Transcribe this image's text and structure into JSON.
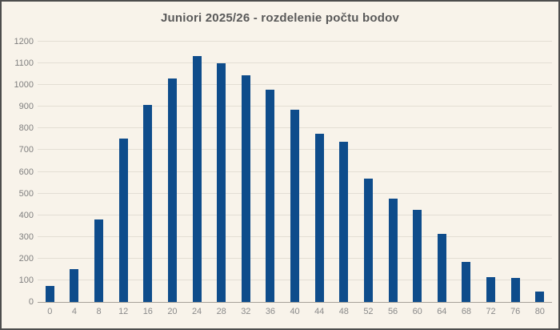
{
  "chart_data": {
    "type": "bar",
    "title": "Juniori 2025/26 - rozdelenie počtu bodov",
    "categories": [
      "0",
      "4",
      "8",
      "12",
      "16",
      "20",
      "24",
      "28",
      "32",
      "36",
      "40",
      "44",
      "48",
      "52",
      "56",
      "60",
      "64",
      "68",
      "72",
      "76",
      "80"
    ],
    "values": [
      75,
      150,
      380,
      755,
      910,
      1030,
      1135,
      1100,
      1045,
      980,
      885,
      775,
      740,
      570,
      475,
      425,
      315,
      185,
      115,
      110,
      50
    ],
    "xlabel": "",
    "ylabel": "",
    "ylim": [
      0,
      1200
    ],
    "ytick_step": 100,
    "yticks": [
      "0",
      "100",
      "200",
      "300",
      "400",
      "500",
      "600",
      "700",
      "800",
      "900",
      "1000",
      "1100",
      "1200"
    ],
    "grid": "horizontal",
    "legend": "none",
    "colors": {
      "bar": "#0e4c8b",
      "background": "#f8f3ea",
      "gridline": "#e3ded4",
      "axis_line": "#a6a29a",
      "tick_label": "#7f7f7f",
      "title": "#595959",
      "frame_border": "#4d4d4d"
    }
  }
}
